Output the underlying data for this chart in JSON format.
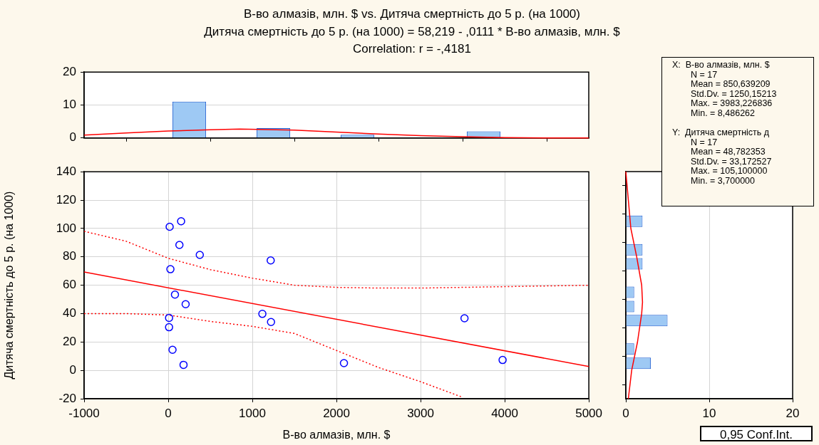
{
  "chart_data": [
    {
      "type": "histogram",
      "title": "В-во алмазів, млн. $ vs. Дитяча смертність до 5 р. (на 1000)",
      "subtitle": "Дитяча смертність до 5 р. (на 1000) = 58,219 - ,0111  * В-во алмазів, млн. $",
      "annotations": [
        "Correlation: r = -,4181"
      ],
      "xlim": [
        -1000,
        5000
      ],
      "ylim": [
        0,
        20
      ],
      "yticks": [
        0,
        10,
        20
      ],
      "tick_labels": "y",
      "grid": "y",
      "series": [
        {
          "type": "histogram",
          "color": "#9ec9f4",
          "bins": [
            -1000,
            -500,
            0,
            500,
            1000,
            1500,
            2000,
            2500,
            3000,
            3500,
            4000,
            4500,
            5000
          ],
          "values": [
            0,
            0,
            11,
            0,
            3,
            0,
            1,
            0,
            0,
            2,
            0,
            0
          ]
        },
        {
          "type": "line",
          "color": "#ff0000",
          "x": [
            -1000,
            -500,
            0,
            500,
            850,
            1500,
            2000,
            2500,
            3000,
            3500,
            4000,
            4500,
            5000
          ],
          "values": [
            0.9,
            1.5,
            2.1,
            2.5,
            2.7,
            2.4,
            1.8,
            1.2,
            0.7,
            0.4,
            0.1,
            0,
            0
          ]
        }
      ]
    },
    {
      "type": "scatter",
      "annotations": [
        "0,95 Conf.Int."
      ],
      "xlabel": "В-во алмазів, млн. $",
      "ylabel": "Дитяча смертність до 5 р. (на 1000)",
      "xlim": [
        -1000,
        5000
      ],
      "xticks": [
        -1000,
        0,
        1000,
        2000,
        3000,
        4000,
        5000
      ],
      "ylim": [
        -20,
        140
      ],
      "yticks": [
        -20,
        0,
        20,
        40,
        60,
        80,
        100,
        120,
        140
      ],
      "grid": true,
      "series": [
        {
          "type": "scatter",
          "marker": "circle",
          "color": "#0000ff",
          "x": [
            17,
            153,
            133,
            375,
            1218,
            26,
            80,
            207,
            10,
            10,
            1119,
            1222,
            3522,
            51,
            182,
            2089,
            3975
          ],
          "values": [
            101.2,
            105.1,
            88.4,
            81.4,
            77.5,
            71.3,
            53.4,
            46.6,
            37,
            30.4,
            39.8,
            34.1,
            36.7,
            14.5,
            3.9,
            5.1,
            7.3
          ]
        },
        {
          "type": "line",
          "color": "#ff0000",
          "x": [
            -1000,
            5000
          ],
          "values": [
            69.3,
            2.7
          ]
        },
        {
          "type": "line",
          "color": "#ff0000",
          "line_style": "dotted",
          "x": [
            -1000,
            -500,
            0,
            500,
            1000,
            1500,
            2000,
            2500,
            3000,
            3500,
            4000,
            4500,
            5000
          ],
          "values": [
            98,
            91,
            79,
            71,
            65,
            60,
            58.5,
            58,
            58,
            58.5,
            59,
            59.5,
            60
          ]
        },
        {
          "type": "line",
          "color": "#ff0000",
          "line_style": "dotted",
          "x": [
            -1000,
            -500,
            0,
            500,
            1000,
            1500,
            2000,
            2500,
            3000,
            3500
          ],
          "values": [
            40,
            40,
            39,
            34.5,
            31,
            26,
            14,
            2,
            -8,
            -19
          ]
        }
      ]
    },
    {
      "type": "histogram",
      "orientation": "horizontal",
      "xlim": [
        0,
        20
      ],
      "xticks": [
        0,
        10,
        20
      ],
      "ylim": [
        -20,
        140
      ],
      "tick_labels": "x",
      "grid": "x",
      "series": [
        {
          "type": "histogram",
          "color": "#9ec9f4",
          "bins": [
            0,
            10,
            20,
            30,
            40,
            50,
            60,
            70,
            80,
            90,
            100,
            110
          ],
          "values": [
            3,
            1,
            0,
            5,
            1,
            1,
            0,
            2,
            2,
            0,
            2
          ]
        },
        {
          "type": "line",
          "color": "#ff0000",
          "x": [
            -20,
            0,
            20,
            40,
            48,
            60,
            80,
            100,
            120,
            140
          ],
          "values": [
            0.3,
            0.7,
            1.4,
            1.9,
            2,
            1.9,
            1.3,
            0.6,
            0.3,
            0
          ]
        }
      ]
    },
    {
      "type": "other",
      "annotations": [
        "X:  В-во алмазів, млн. $",
        "N = 17",
        "Mean = 850,639209",
        "Std.Dv. = 1250,15213",
        "Max. = 3983,226836",
        "Min. = 8,486262",
        "Y:  Дитяча смертність д",
        "N = 17",
        "Mean = 48,782353",
        "Std.Dv. = 33,172527",
        "Max. = 105,100000",
        "Min. = 3,700000"
      ]
    }
  ]
}
